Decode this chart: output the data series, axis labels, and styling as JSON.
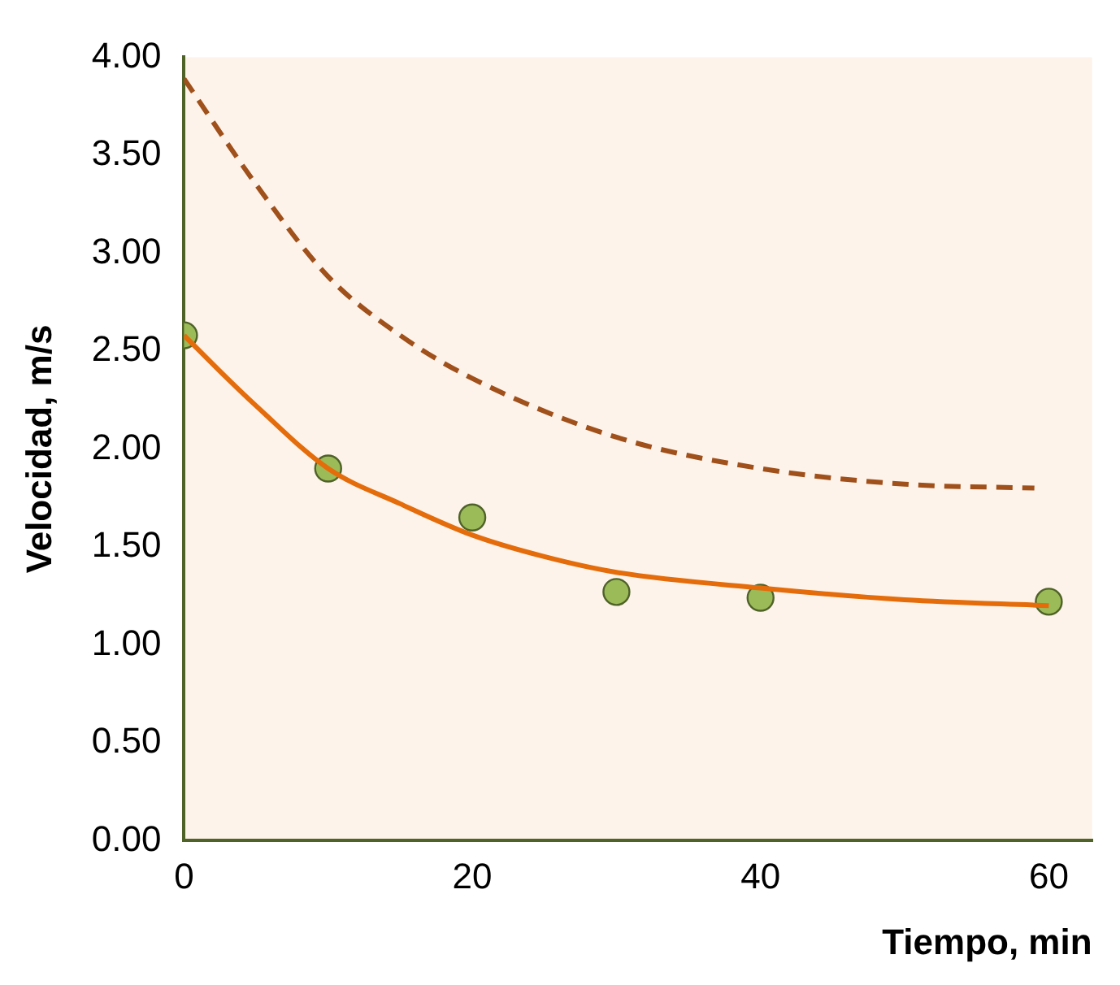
{
  "chart_data": {
    "type": "line",
    "xlabel": "Tiempo, min",
    "ylabel": "Velocidad, m/s",
    "xlim": [
      0,
      63
    ],
    "xticks": [
      0,
      20,
      40,
      60
    ],
    "ylim": [
      0,
      4
    ],
    "yticks": [
      {
        "value": 0,
        "label": "0.00"
      },
      {
        "value": 0.5,
        "label": "0.50"
      },
      {
        "value": 1,
        "label": "1.00"
      },
      {
        "value": 1.5,
        "label": "1.50"
      },
      {
        "value": 2,
        "label": "2.00"
      },
      {
        "value": 2.5,
        "label": "2.50"
      },
      {
        "value": 3,
        "label": "3.00"
      },
      {
        "value": 3.5,
        "label": "3.50"
      },
      {
        "value": 4,
        "label": "4.00"
      }
    ],
    "grid": false,
    "legend": false,
    "series": [
      {
        "type": "line",
        "color": "#a0501a",
        "line_style": "dashed",
        "marker": "none",
        "x": [
          0,
          5,
          10,
          15,
          20,
          30,
          40,
          50,
          59
        ],
        "values": [
          3.89,
          3.35,
          2.88,
          2.58,
          2.36,
          2.06,
          1.9,
          1.82,
          1.8
        ]
      },
      {
        "type": "line",
        "color": "#e46c0a",
        "line_style": "solid",
        "marker": "none",
        "x": [
          0,
          3,
          5,
          10,
          15,
          20,
          25,
          30,
          40,
          50,
          60
        ],
        "values": [
          2.58,
          2.36,
          2.22,
          1.9,
          1.72,
          1.56,
          1.45,
          1.37,
          1.29,
          1.23,
          1.2
        ]
      },
      {
        "type": "scatter",
        "color": "#9bbb59",
        "marker": "circle",
        "x": [
          0,
          10,
          20,
          30,
          40,
          60
        ],
        "values": [
          2.58,
          1.9,
          1.65,
          1.27,
          1.24,
          1.22
        ]
      }
    ]
  }
}
